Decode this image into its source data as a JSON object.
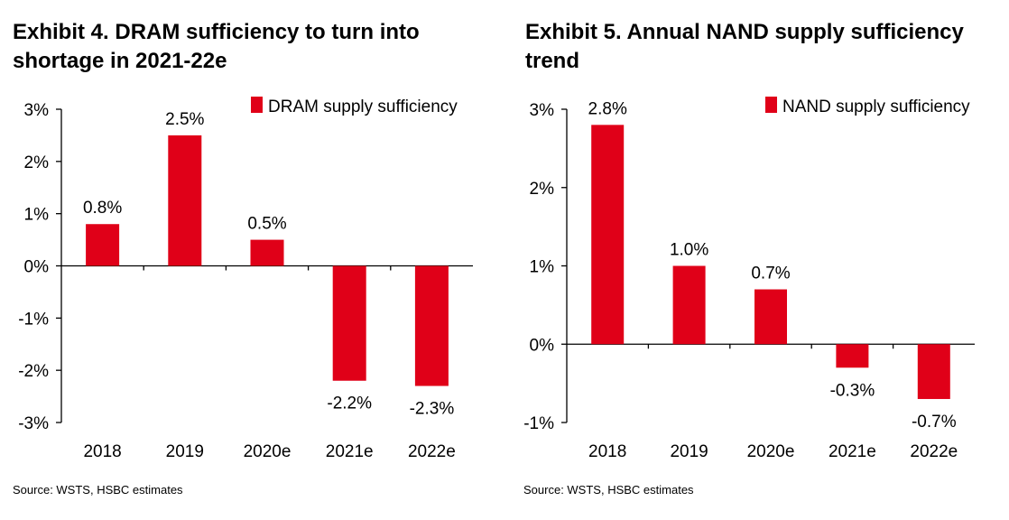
{
  "colors": {
    "bar": "#e00018",
    "axis": "#000000"
  },
  "exhibits": [
    {
      "title": "Exhibit 4. DRAM sufficiency to turn into shortage in 2021-22e",
      "source": "Source: WSTS, HSBC estimates",
      "chart_data": {
        "type": "bar",
        "categories": [
          "2018",
          "2019",
          "2020e",
          "2021e",
          "2022e"
        ],
        "series": [
          {
            "name": "DRAM supply sufficiency",
            "values": [
              0.8,
              2.5,
              0.5,
              -2.2,
              -2.3
            ]
          }
        ],
        "data_labels": [
          "0.8%",
          "2.5%",
          "0.5%",
          "-2.2%",
          "-2.3%"
        ],
        "yticks": [
          3,
          2,
          1,
          0,
          -1,
          -2,
          -3
        ],
        "ytick_labels": [
          "3%",
          "2%",
          "1%",
          "0%",
          "-1%",
          "-2%",
          "-3%"
        ],
        "ylim": [
          -3,
          3
        ],
        "legend": "top-right",
        "grid": false
      }
    },
    {
      "title": "Exhibit 5. Annual NAND supply sufficiency trend",
      "source": "Source: WSTS, HSBC estimates",
      "chart_data": {
        "type": "bar",
        "categories": [
          "2018",
          "2019",
          "2020e",
          "2021e",
          "2022e"
        ],
        "series": [
          {
            "name": "NAND supply sufficiency",
            "values": [
              2.8,
              1.0,
              0.7,
              -0.3,
              -0.7
            ]
          }
        ],
        "data_labels": [
          "2.8%",
          "1.0%",
          "0.7%",
          "-0.3%",
          "-0.7%"
        ],
        "yticks": [
          3,
          2,
          1,
          0,
          -1
        ],
        "ytick_labels": [
          "3%",
          "2%",
          "1%",
          "0%",
          "-1%"
        ],
        "ylim": [
          -1,
          3
        ],
        "legend": "top-right",
        "grid": false
      }
    }
  ]
}
